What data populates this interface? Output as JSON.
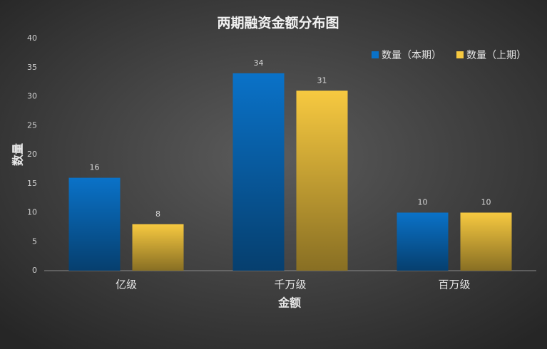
{
  "chart_data": {
    "type": "bar",
    "title": "两期融资金额分布图",
    "x_label": "金额",
    "y_label": "数量",
    "categories": [
      "亿级",
      "千万级",
      "百万级"
    ],
    "series": [
      {
        "name": "数量（本期）",
        "color": "#0a72c8",
        "values": [
          16,
          34,
          10
        ]
      },
      {
        "name": "数量（上期）",
        "color": "#f7c940",
        "values": [
          8,
          31,
          10
        ]
      }
    ],
    "ylim": [
      0,
      40
    ],
    "yticks": [
      0,
      5,
      10,
      15,
      20,
      25,
      30,
      35,
      40
    ],
    "grid": false,
    "legend": "top-right",
    "data_labels": true
  }
}
